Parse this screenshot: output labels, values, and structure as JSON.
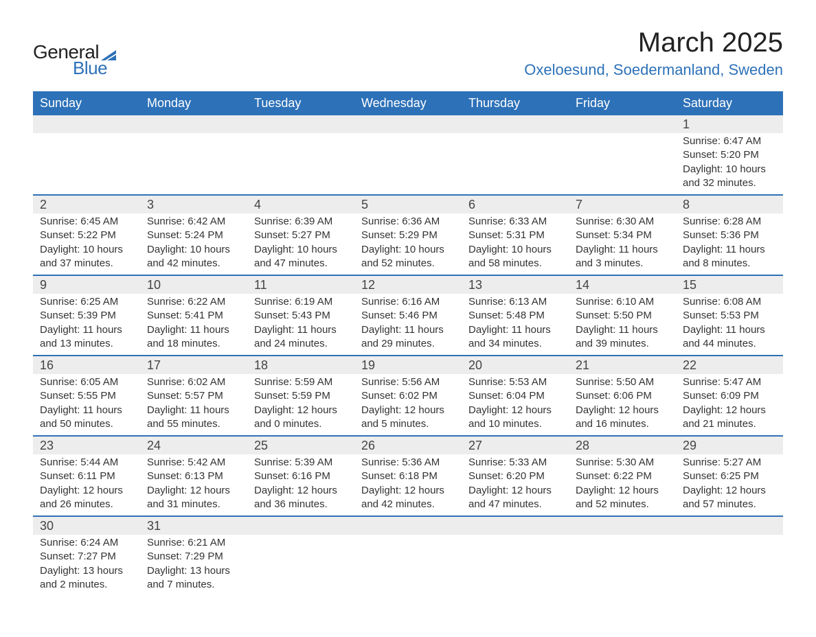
{
  "logo": {
    "text1": "General",
    "text2": "Blue",
    "icon_color": "#2d71b8"
  },
  "header": {
    "month_title": "March 2025",
    "location": "Oxeloesund, Soedermanland, Sweden"
  },
  "colors": {
    "header_bg": "#2d71b8",
    "header_text": "#ffffff",
    "row_divider": "#2d71b8",
    "daynum_bg": "#ededed",
    "body_text": "#333333",
    "background": "#ffffff"
  },
  "typography": {
    "month_title_fontsize": 40,
    "location_fontsize": 22,
    "weekday_fontsize": 18,
    "daynum_fontsize": 18,
    "content_fontsize": 15,
    "font_family": "Arial"
  },
  "weekdays": [
    "Sunday",
    "Monday",
    "Tuesday",
    "Wednesday",
    "Thursday",
    "Friday",
    "Saturday"
  ],
  "weeks": [
    [
      null,
      null,
      null,
      null,
      null,
      null,
      {
        "n": "1",
        "sunrise": "6:47 AM",
        "sunset": "5:20 PM",
        "dl": "10 hours and 32 minutes."
      }
    ],
    [
      {
        "n": "2",
        "sunrise": "6:45 AM",
        "sunset": "5:22 PM",
        "dl": "10 hours and 37 minutes."
      },
      {
        "n": "3",
        "sunrise": "6:42 AM",
        "sunset": "5:24 PM",
        "dl": "10 hours and 42 minutes."
      },
      {
        "n": "4",
        "sunrise": "6:39 AM",
        "sunset": "5:27 PM",
        "dl": "10 hours and 47 minutes."
      },
      {
        "n": "5",
        "sunrise": "6:36 AM",
        "sunset": "5:29 PM",
        "dl": "10 hours and 52 minutes."
      },
      {
        "n": "6",
        "sunrise": "6:33 AM",
        "sunset": "5:31 PM",
        "dl": "10 hours and 58 minutes."
      },
      {
        "n": "7",
        "sunrise": "6:30 AM",
        "sunset": "5:34 PM",
        "dl": "11 hours and 3 minutes."
      },
      {
        "n": "8",
        "sunrise": "6:28 AM",
        "sunset": "5:36 PM",
        "dl": "11 hours and 8 minutes."
      }
    ],
    [
      {
        "n": "9",
        "sunrise": "6:25 AM",
        "sunset": "5:39 PM",
        "dl": "11 hours and 13 minutes."
      },
      {
        "n": "10",
        "sunrise": "6:22 AM",
        "sunset": "5:41 PM",
        "dl": "11 hours and 18 minutes."
      },
      {
        "n": "11",
        "sunrise": "6:19 AM",
        "sunset": "5:43 PM",
        "dl": "11 hours and 24 minutes."
      },
      {
        "n": "12",
        "sunrise": "6:16 AM",
        "sunset": "5:46 PM",
        "dl": "11 hours and 29 minutes."
      },
      {
        "n": "13",
        "sunrise": "6:13 AM",
        "sunset": "5:48 PM",
        "dl": "11 hours and 34 minutes."
      },
      {
        "n": "14",
        "sunrise": "6:10 AM",
        "sunset": "5:50 PM",
        "dl": "11 hours and 39 minutes."
      },
      {
        "n": "15",
        "sunrise": "6:08 AM",
        "sunset": "5:53 PM",
        "dl": "11 hours and 44 minutes."
      }
    ],
    [
      {
        "n": "16",
        "sunrise": "6:05 AM",
        "sunset": "5:55 PM",
        "dl": "11 hours and 50 minutes."
      },
      {
        "n": "17",
        "sunrise": "6:02 AM",
        "sunset": "5:57 PM",
        "dl": "11 hours and 55 minutes."
      },
      {
        "n": "18",
        "sunrise": "5:59 AM",
        "sunset": "5:59 PM",
        "dl": "12 hours and 0 minutes."
      },
      {
        "n": "19",
        "sunrise": "5:56 AM",
        "sunset": "6:02 PM",
        "dl": "12 hours and 5 minutes."
      },
      {
        "n": "20",
        "sunrise": "5:53 AM",
        "sunset": "6:04 PM",
        "dl": "12 hours and 10 minutes."
      },
      {
        "n": "21",
        "sunrise": "5:50 AM",
        "sunset": "6:06 PM",
        "dl": "12 hours and 16 minutes."
      },
      {
        "n": "22",
        "sunrise": "5:47 AM",
        "sunset": "6:09 PM",
        "dl": "12 hours and 21 minutes."
      }
    ],
    [
      {
        "n": "23",
        "sunrise": "5:44 AM",
        "sunset": "6:11 PM",
        "dl": "12 hours and 26 minutes."
      },
      {
        "n": "24",
        "sunrise": "5:42 AM",
        "sunset": "6:13 PM",
        "dl": "12 hours and 31 minutes."
      },
      {
        "n": "25",
        "sunrise": "5:39 AM",
        "sunset": "6:16 PM",
        "dl": "12 hours and 36 minutes."
      },
      {
        "n": "26",
        "sunrise": "5:36 AM",
        "sunset": "6:18 PM",
        "dl": "12 hours and 42 minutes."
      },
      {
        "n": "27",
        "sunrise": "5:33 AM",
        "sunset": "6:20 PM",
        "dl": "12 hours and 47 minutes."
      },
      {
        "n": "28",
        "sunrise": "5:30 AM",
        "sunset": "6:22 PM",
        "dl": "12 hours and 52 minutes."
      },
      {
        "n": "29",
        "sunrise": "5:27 AM",
        "sunset": "6:25 PM",
        "dl": "12 hours and 57 minutes."
      }
    ],
    [
      {
        "n": "30",
        "sunrise": "6:24 AM",
        "sunset": "7:27 PM",
        "dl": "13 hours and 2 minutes."
      },
      {
        "n": "31",
        "sunrise": "6:21 AM",
        "sunset": "7:29 PM",
        "dl": "13 hours and 7 minutes."
      },
      null,
      null,
      null,
      null,
      null
    ]
  ],
  "labels": {
    "sunrise_prefix": "Sunrise: ",
    "sunset_prefix": "Sunset: ",
    "daylight_prefix": "Daylight: "
  }
}
